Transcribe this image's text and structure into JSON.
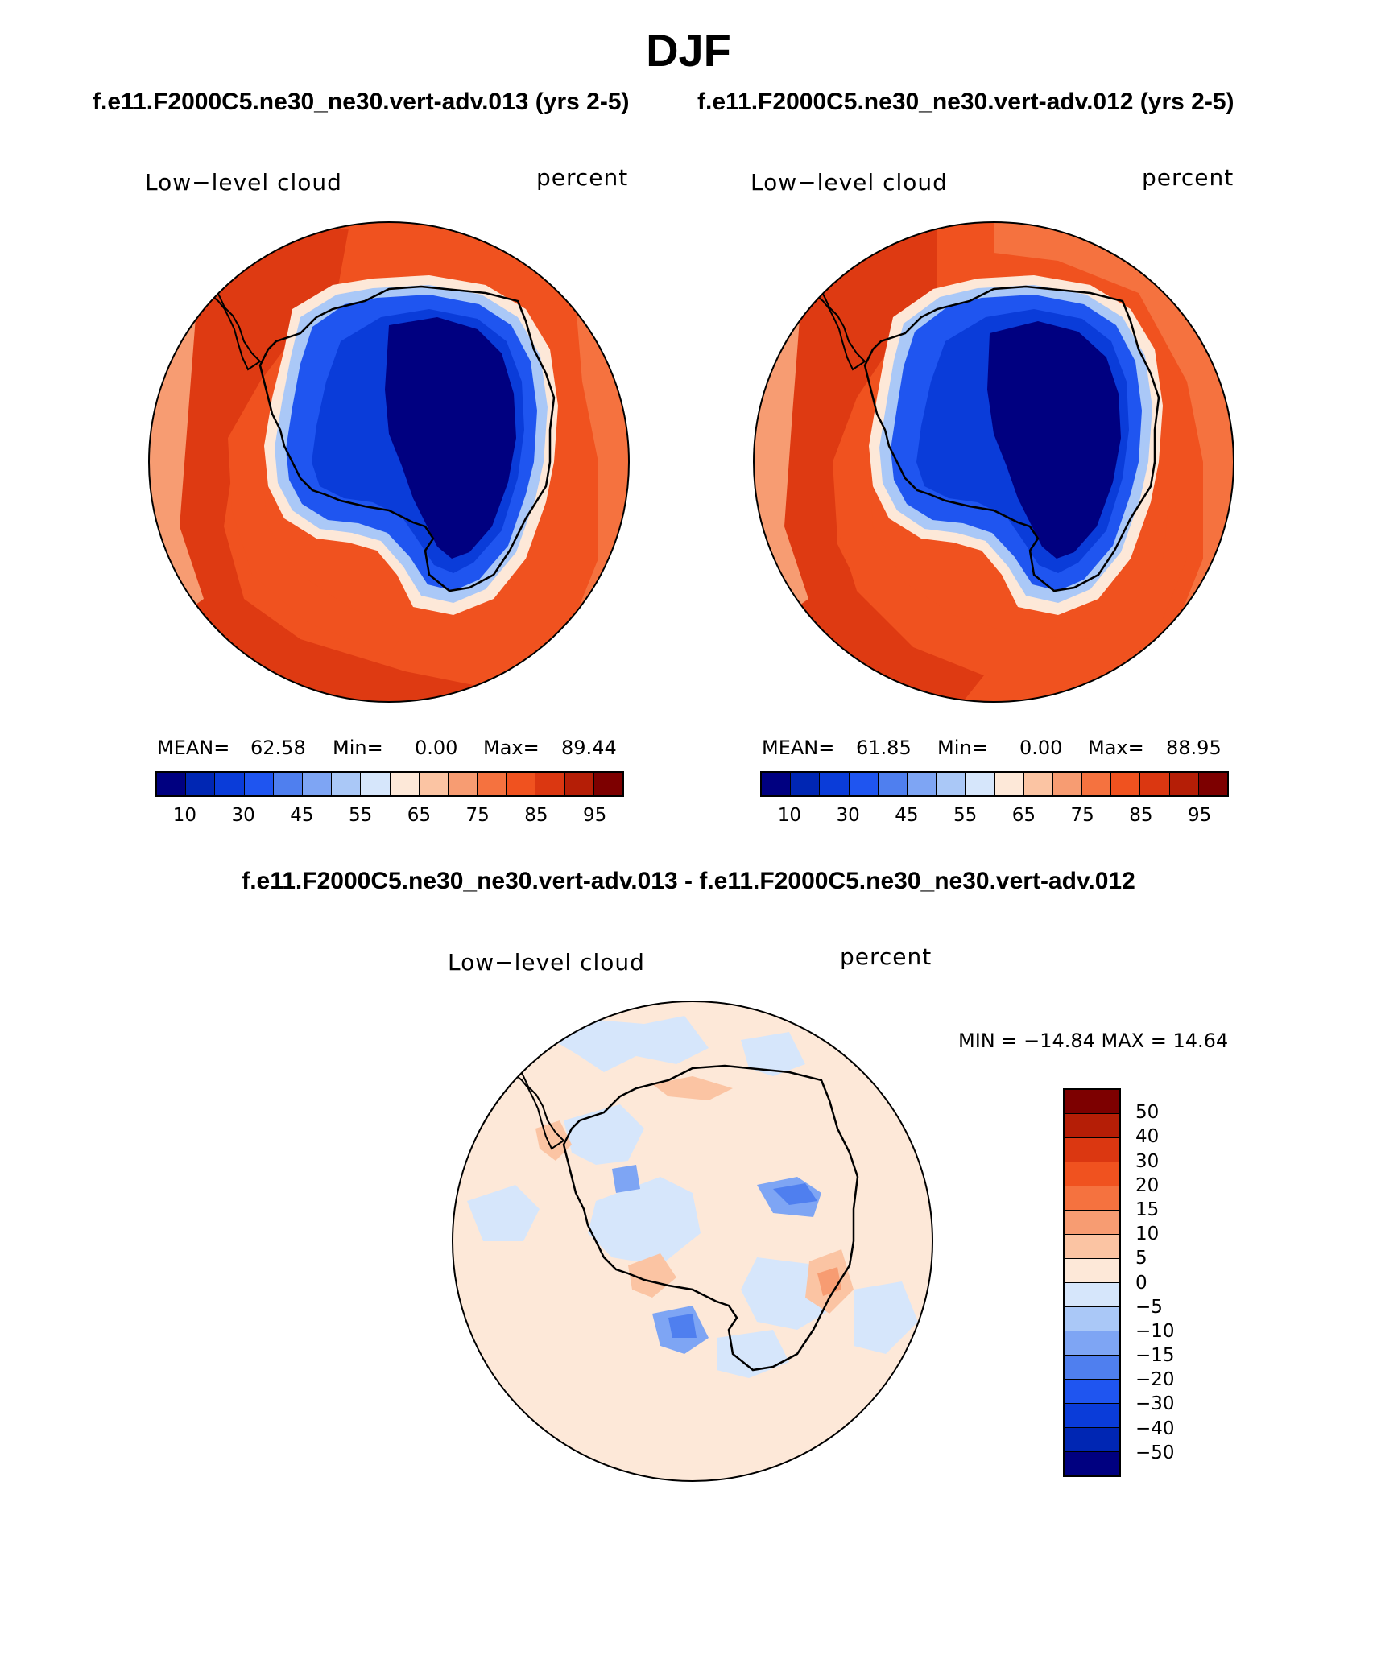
{
  "figure": {
    "season": "DJF",
    "case_left_title": "f.e11.F2000C5.ne30_ne30.vert-adv.013 (yrs 2-5)",
    "case_right_title": "f.e11.F2000C5.ne30_ne30.vert-adv.012 (yrs 2-5)",
    "difference_title": "f.e11.F2000C5.ne30_ne30.vert-adv.013 - f.e11.F2000C5.ne30_ne30.vert-adv.012"
  },
  "panels": [
    {
      "variable": "Low−level cloud",
      "units": "percent",
      "mean_label": "MEAN=",
      "mean": "62.58",
      "min_label": "Min=",
      "min": "0.00",
      "max_label": "Max=",
      "max": "89.44"
    },
    {
      "variable": "Low−level cloud",
      "units": "percent",
      "mean_label": "MEAN=",
      "mean": "61.85",
      "min_label": "Min=",
      "min": "0.00",
      "max_label": "Max=",
      "max": "88.95"
    }
  ],
  "difference_panel": {
    "variable": "Low−level cloud",
    "units": "percent",
    "minmax": "MIN = −14.84  MAX =   14.64"
  },
  "colorbars": {
    "absolute": {
      "colors": [
        "#000080",
        "#0026b3",
        "#0a3cd9",
        "#1f55f0",
        "#4f7fef",
        "#7ea5f4",
        "#aac8f7",
        "#d6e6fb",
        "#fde8d8",
        "#fbc4a3",
        "#f79c72",
        "#f5723f",
        "#f0521f",
        "#db3711",
        "#b51e06",
        "#7d0000"
      ],
      "labels": [
        "10",
        "30",
        "45",
        "55",
        "65",
        "75",
        "85",
        "95"
      ]
    },
    "difference": {
      "colors_top_to_bottom": [
        "#7d0000",
        "#b51e06",
        "#db3711",
        "#f0521f",
        "#f5723f",
        "#f79c72",
        "#fbc4a3",
        "#fde8d8",
        "#d6e6fb",
        "#aac8f7",
        "#7ea5f4",
        "#4f7fef",
        "#1f55f0",
        "#0a3cd9",
        "#0026b3",
        "#000080"
      ],
      "labels": [
        "50",
        "40",
        "30",
        "20",
        "15",
        "10",
        "5",
        "0",
        "−5",
        "−10",
        "−15",
        "−20",
        "−30",
        "−40",
        "−50"
      ]
    }
  },
  "map_colors": {
    "ocean_dark": "#db3711",
    "ocean_mid": "#f0521f",
    "ocean_light": "#f5723f",
    "ocean_pale": "#f79c72",
    "edge_white": "#fde8d8",
    "ice_edge": "#aac8f7",
    "ice_blue": "#1f55f0",
    "ice_mid": "#0a3cd9",
    "ice_deep": "#000080",
    "diff_bg": "#fde8d8",
    "diff_neg_light": "#d6e6fb",
    "diff_neg_mid": "#7ea5f4",
    "diff_neg_strong": "#4f7fef",
    "diff_pos": "#fbc4a3",
    "diff_pos_strong": "#f79c72"
  }
}
